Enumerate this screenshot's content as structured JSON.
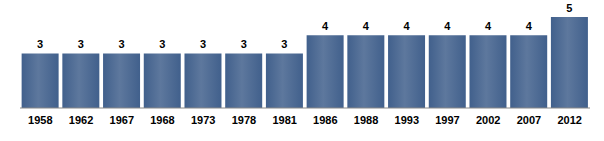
{
  "chart_data": {
    "type": "bar",
    "categories": [
      "1958",
      "1962",
      "1967",
      "1968",
      "1973",
      "1978",
      "1981",
      "1986",
      "1988",
      "1993",
      "1997",
      "2002",
      "2007",
      "2012"
    ],
    "values": [
      3,
      3,
      3,
      3,
      3,
      3,
      3,
      4,
      4,
      4,
      4,
      4,
      4,
      5
    ],
    "color": "#41608c",
    "ylim": [
      0,
      5
    ],
    "yticks": [],
    "grid": false,
    "data_labels": true,
    "tick_labels": "x"
  }
}
